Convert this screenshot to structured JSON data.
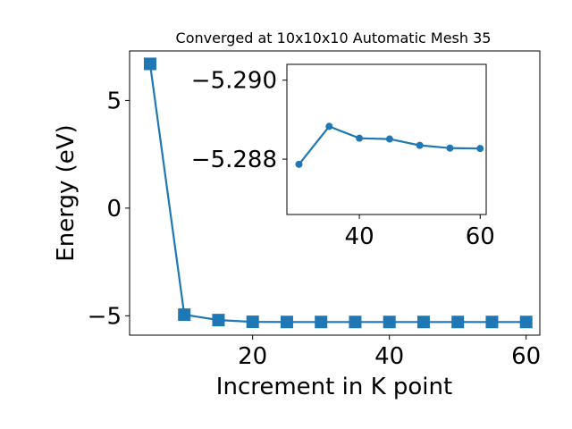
{
  "chart_data": [
    {
      "type": "line",
      "title": "Converged at 10x10x10 Automatic Mesh 35",
      "xlabel": "Increment in K point",
      "ylabel": "Energy (eV)",
      "xlim": [
        2,
        62
      ],
      "ylim": [
        -5.9,
        7.3
      ],
      "xticks": [
        "20",
        "40",
        "60"
      ],
      "yticks": [
        "−5",
        "0",
        "5"
      ],
      "grid": false,
      "color": "#1f77b4",
      "marker": "square",
      "x": [
        5,
        10,
        15,
        20,
        25,
        30,
        35,
        40,
        45,
        50,
        55,
        60
      ],
      "y": [
        6.7,
        -4.95,
        -5.2,
        -5.28,
        -5.288,
        -5.288,
        -5.288,
        -5.288,
        -5.288,
        -5.288,
        -5.288,
        -5.288
      ]
    },
    {
      "type": "line",
      "inset": true,
      "xlim": [
        28,
        61
      ],
      "ylim_top": -5.2904,
      "ylim_bottom": -5.2866,
      "yaxis_inverted": true,
      "xticks": [
        "40",
        "60"
      ],
      "yticks": [
        "−5.290",
        "−5.288"
      ],
      "color": "#1f77b4",
      "marker": "circle",
      "x": [
        30,
        35,
        40,
        45,
        50,
        55,
        60
      ],
      "y": [
        -5.28787,
        -5.28883,
        -5.28853,
        -5.28851,
        -5.28835,
        -5.28828,
        -5.28827
      ]
    }
  ]
}
